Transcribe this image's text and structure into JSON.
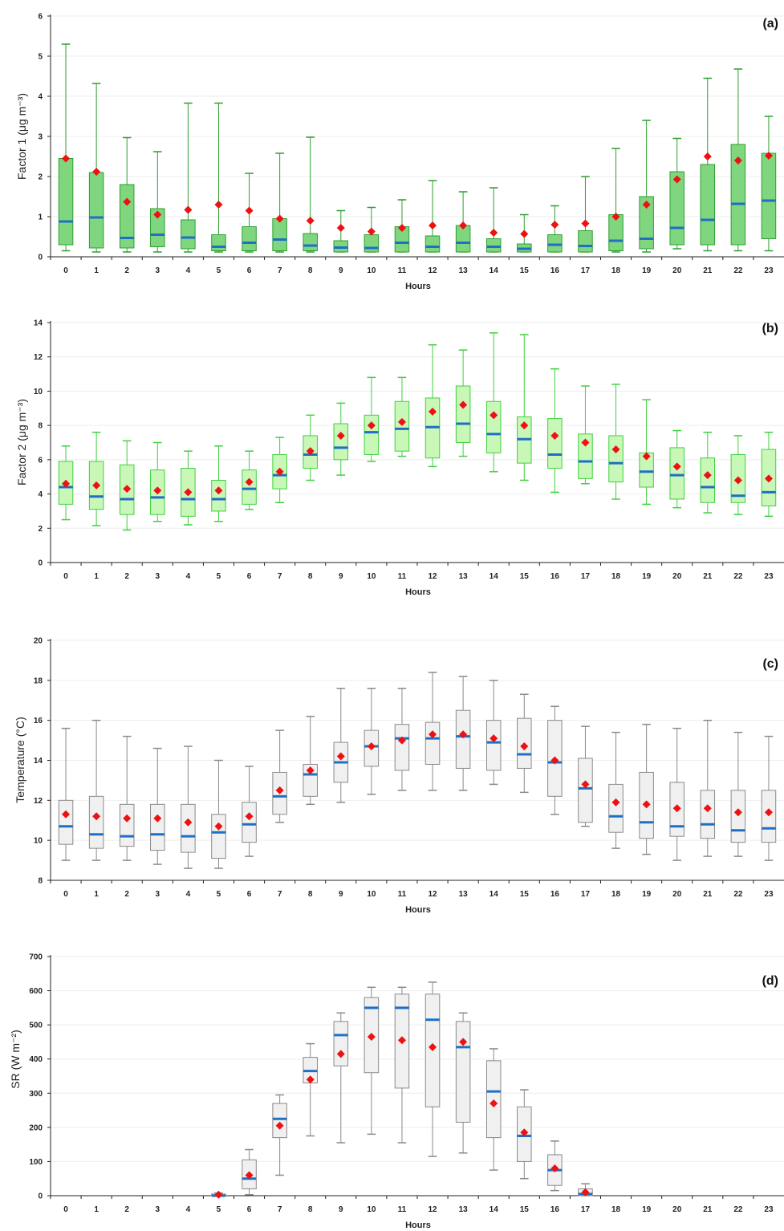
{
  "colors": {
    "panel_a_box_fill": "#7fd67f",
    "panel_a_box_stroke": "#2e9e2e",
    "panel_b_box_fill": "#c9f7b8",
    "panel_b_box_stroke": "#3ed13e",
    "gray_box_fill": "#f0f0f0",
    "gray_box_stroke": "#8a8a8a",
    "median": "#1f6fc5",
    "mean": "#ee1111",
    "grid": "#eeeeee",
    "axis": "#222222"
  },
  "chart_data": [
    {
      "type": "box",
      "panel_label": "(a)",
      "ylabel": "Factor 1 (μg m⁻³)",
      "xlabel": "Hours",
      "ylim": [
        0,
        6
      ],
      "y_ticks": [
        0,
        1,
        2,
        3,
        4,
        5,
        6
      ],
      "x_ticks": [
        "0",
        "1",
        "2",
        "3",
        "4",
        "5",
        "6",
        "7",
        "8",
        "9",
        "10",
        "11",
        "12",
        "13",
        "14",
        "15",
        "16",
        "17",
        "18",
        "19",
        "20",
        "21",
        "22",
        "23"
      ],
      "grid": true,
      "color_key": "a",
      "series": {
        "min": [
          0.15,
          0.12,
          0.12,
          0.12,
          0.12,
          0.12,
          0.12,
          0.12,
          0.12,
          0.12,
          0.12,
          0.12,
          0.12,
          0.12,
          0.12,
          0.12,
          0.12,
          0.12,
          0.12,
          0.12,
          0.2,
          0.15,
          0.15,
          0.15
        ],
        "q1": [
          0.3,
          0.22,
          0.22,
          0.25,
          0.2,
          0.15,
          0.15,
          0.15,
          0.15,
          0.12,
          0.12,
          0.12,
          0.12,
          0.12,
          0.12,
          0.12,
          0.12,
          0.12,
          0.15,
          0.2,
          0.3,
          0.3,
          0.3,
          0.45
        ],
        "median": [
          0.88,
          0.98,
          0.47,
          0.55,
          0.48,
          0.25,
          0.35,
          0.43,
          0.28,
          0.23,
          0.22,
          0.35,
          0.25,
          0.35,
          0.25,
          0.2,
          0.3,
          0.27,
          0.4,
          0.45,
          0.72,
          0.92,
          1.32,
          1.4
        ],
        "q3": [
          2.45,
          2.1,
          1.8,
          1.2,
          0.92,
          0.55,
          0.75,
          0.95,
          0.58,
          0.4,
          0.55,
          0.75,
          0.52,
          0.78,
          0.45,
          0.32,
          0.55,
          0.65,
          1.05,
          1.5,
          2.12,
          2.3,
          2.8,
          2.58
        ],
        "max": [
          5.3,
          4.32,
          2.97,
          2.62,
          3.83,
          3.83,
          2.08,
          2.58,
          2.98,
          1.15,
          1.23,
          1.42,
          1.9,
          1.62,
          1.72,
          1.05,
          1.27,
          2.0,
          2.7,
          3.4,
          2.95,
          4.45,
          4.68,
          3.5
        ],
        "mean": [
          2.45,
          2.12,
          1.37,
          1.05,
          1.17,
          1.3,
          1.15,
          0.95,
          0.9,
          0.72,
          0.63,
          0.72,
          0.78,
          0.78,
          0.6,
          0.57,
          0.8,
          0.83,
          1.0,
          1.3,
          1.93,
          2.5,
          2.4,
          2.52
        ]
      }
    },
    {
      "type": "box",
      "panel_label": "(b)",
      "ylabel": "Factor 2 (μg m⁻³)",
      "xlabel": "Hours",
      "ylim": [
        0,
        14
      ],
      "y_ticks": [
        0,
        2,
        4,
        6,
        8,
        10,
        12,
        14
      ],
      "x_ticks": [
        "0",
        "1",
        "2",
        "3",
        "4",
        "5",
        "6",
        "7",
        "8",
        "9",
        "10",
        "11",
        "12",
        "13",
        "14",
        "15",
        "16",
        "17",
        "18",
        "19",
        "20",
        "21",
        "22",
        "23"
      ],
      "grid": true,
      "color_key": "b",
      "series": {
        "min": [
          2.5,
          2.15,
          1.9,
          2.4,
          2.2,
          2.4,
          3.1,
          3.5,
          4.8,
          5.1,
          5.9,
          6.2,
          5.6,
          6.2,
          5.3,
          4.8,
          4.1,
          4.6,
          3.7,
          3.4,
          3.2,
          2.9,
          2.8,
          2.7
        ],
        "q1": [
          3.4,
          3.1,
          2.8,
          2.8,
          2.7,
          3.0,
          3.4,
          4.3,
          5.5,
          6.0,
          6.3,
          6.5,
          6.1,
          7.0,
          6.4,
          5.8,
          5.5,
          4.9,
          4.7,
          4.4,
          3.7,
          3.5,
          3.5,
          3.3
        ],
        "median": [
          4.4,
          3.85,
          3.7,
          3.8,
          3.7,
          3.7,
          4.3,
          5.1,
          6.3,
          6.7,
          7.6,
          7.8,
          7.9,
          8.1,
          7.5,
          7.2,
          6.3,
          5.9,
          5.8,
          5.3,
          5.1,
          4.4,
          3.9,
          4.1
        ],
        "q3": [
          5.9,
          5.9,
          5.7,
          5.4,
          5.5,
          4.8,
          5.4,
          6.3,
          7.4,
          8.1,
          8.6,
          9.4,
          9.6,
          10.3,
          9.4,
          8.5,
          8.4,
          7.5,
          7.4,
          6.4,
          6.7,
          6.1,
          6.3,
          6.6
        ],
        "max": [
          6.8,
          7.6,
          7.1,
          7.0,
          6.5,
          6.8,
          6.5,
          7.3,
          8.6,
          9.3,
          10.8,
          10.8,
          12.7,
          12.4,
          13.4,
          13.3,
          11.3,
          10.3,
          10.4,
          9.5,
          7.7,
          7.6,
          7.4,
          7.6
        ],
        "mean": [
          4.6,
          4.5,
          4.3,
          4.2,
          4.1,
          4.2,
          4.7,
          5.3,
          6.5,
          7.4,
          8.0,
          8.2,
          8.8,
          9.2,
          8.6,
          8.0,
          7.4,
          7.0,
          6.6,
          6.2,
          5.6,
          5.1,
          4.8,
          4.9
        ]
      }
    },
    {
      "type": "box",
      "panel_label": "(c)",
      "ylabel": "Temperature (°C)",
      "xlabel": "Hours",
      "ylim": [
        8,
        20
      ],
      "y_ticks": [
        8,
        10,
        12,
        14,
        16,
        18,
        20
      ],
      "x_ticks": [
        "0",
        "1",
        "2",
        "3",
        "4",
        "5",
        "6",
        "7",
        "8",
        "9",
        "10",
        "11",
        "12",
        "13",
        "14",
        "15",
        "16",
        "17",
        "18",
        "19",
        "20",
        "21",
        "22",
        "23"
      ],
      "grid": true,
      "color_key": "gray",
      "series": {
        "min": [
          9.0,
          9.0,
          9.0,
          8.8,
          8.6,
          8.6,
          9.2,
          10.9,
          11.8,
          11.9,
          12.3,
          12.5,
          12.5,
          12.5,
          12.8,
          12.4,
          11.3,
          10.7,
          9.6,
          9.3,
          9.0,
          9.2,
          9.2,
          9.0
        ],
        "q1": [
          9.8,
          9.6,
          9.7,
          9.5,
          9.4,
          9.1,
          9.9,
          11.3,
          12.2,
          12.9,
          13.7,
          13.5,
          13.8,
          13.6,
          13.5,
          13.6,
          12.2,
          10.9,
          10.4,
          10.1,
          10.2,
          10.1,
          9.9,
          9.9
        ],
        "median": [
          10.7,
          10.3,
          10.2,
          10.3,
          10.2,
          10.4,
          10.8,
          12.2,
          13.3,
          13.9,
          14.7,
          15.1,
          15.1,
          15.2,
          14.9,
          14.3,
          13.9,
          12.6,
          11.2,
          10.9,
          10.7,
          10.8,
          10.5,
          10.6
        ],
        "q3": [
          12.0,
          12.2,
          11.8,
          11.8,
          11.8,
          11.3,
          11.9,
          13.4,
          13.8,
          14.9,
          15.5,
          15.8,
          15.9,
          16.5,
          16.0,
          16.1,
          16.0,
          14.1,
          12.8,
          13.4,
          12.9,
          12.5,
          12.5,
          12.5
        ],
        "max": [
          15.6,
          16.0,
          15.2,
          14.6,
          14.7,
          14.0,
          13.7,
          15.5,
          16.2,
          17.6,
          17.6,
          17.6,
          18.4,
          18.2,
          18.0,
          17.3,
          16.7,
          15.7,
          15.4,
          15.8,
          15.6,
          16.0,
          15.4,
          15.2
        ],
        "mean": [
          11.3,
          11.2,
          11.1,
          11.1,
          10.9,
          10.7,
          11.2,
          12.5,
          13.5,
          14.2,
          14.7,
          15.0,
          15.3,
          15.3,
          15.1,
          14.7,
          14.0,
          12.8,
          11.9,
          11.8,
          11.6,
          11.6,
          11.4,
          11.4
        ]
      }
    },
    {
      "type": "box",
      "panel_label": "(d)",
      "ylabel": "SR (W m⁻²)",
      "xlabel": "Hours",
      "ylim": [
        0,
        700
      ],
      "y_ticks": [
        0,
        100,
        200,
        300,
        400,
        500,
        600,
        700
      ],
      "x_ticks": [
        "0",
        "1",
        "2",
        "3",
        "4",
        "5",
        "6",
        "7",
        "8",
        "9",
        "10",
        "11",
        "12",
        "13",
        "14",
        "15",
        "16",
        "17",
        "18",
        "19",
        "20",
        "21",
        "22",
        "23"
      ],
      "grid": true,
      "color_key": "gray",
      "series": {
        "min": [
          null,
          null,
          null,
          null,
          null,
          0,
          3,
          60,
          175,
          155,
          180,
          155,
          115,
          125,
          75,
          50,
          15,
          0,
          null,
          null,
          null,
          null,
          null,
          null
        ],
        "q1": [
          null,
          null,
          null,
          null,
          null,
          0,
          20,
          170,
          330,
          380,
          360,
          315,
          260,
          215,
          170,
          100,
          30,
          0,
          null,
          null,
          null,
          null,
          null,
          null
        ],
        "median": [
          null,
          null,
          null,
          null,
          null,
          0,
          50,
          225,
          365,
          470,
          550,
          550,
          515,
          435,
          305,
          175,
          75,
          5,
          null,
          null,
          null,
          null,
          null,
          null
        ],
        "q3": [
          null,
          null,
          null,
          null,
          null,
          5,
          105,
          270,
          405,
          510,
          580,
          590,
          590,
          510,
          395,
          260,
          120,
          20,
          null,
          null,
          null,
          null,
          null,
          null
        ],
        "max": [
          null,
          null,
          null,
          null,
          null,
          8,
          135,
          295,
          445,
          535,
          610,
          610,
          625,
          535,
          430,
          310,
          160,
          35,
          null,
          null,
          null,
          null,
          null,
          null
        ],
        "mean": [
          null,
          null,
          null,
          null,
          null,
          3,
          60,
          205,
          340,
          415,
          465,
          455,
          435,
          450,
          270,
          185,
          80,
          10,
          null,
          null,
          null,
          null,
          null,
          null
        ]
      }
    }
  ]
}
